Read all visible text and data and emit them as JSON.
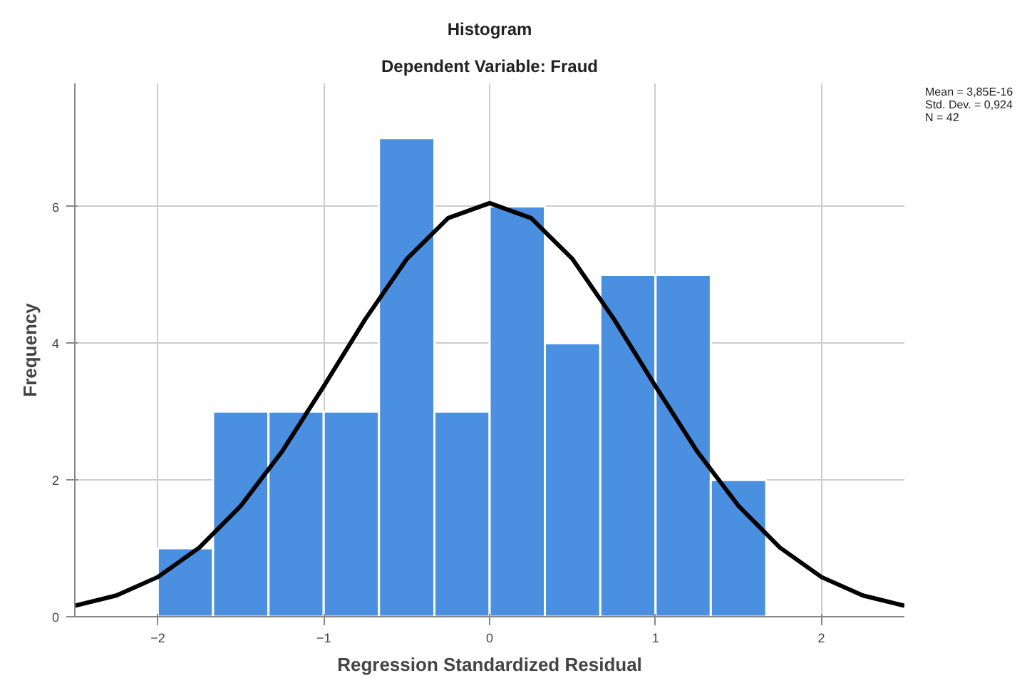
{
  "chart_data": {
    "type": "histogram",
    "title": "Histogram",
    "subtitle": "Dependent Variable: Fraud",
    "xlabel": "Regression Standardized Residual",
    "ylabel": "Frequency",
    "bins": [
      -2,
      -1.667,
      -1.333,
      -1,
      -0.667,
      -0.333,
      0,
      0.333,
      0.667,
      1,
      1.333,
      1.667
    ],
    "values": [
      1,
      3,
      3,
      3,
      7,
      3,
      6,
      4,
      5,
      5,
      2
    ],
    "color": "#4a8fe0",
    "series": [
      {
        "type": "line",
        "color": "#000000",
        "x": [
          -2.5,
          -2.25,
          -2,
          -1.75,
          -1.5,
          -1.25,
          -1,
          -0.75,
          -0.5,
          -0.25,
          0,
          0.25,
          0.5,
          0.75,
          1,
          1.25,
          1.5,
          1.75,
          2,
          2.25,
          2.5
        ],
        "values": [
          0.16,
          0.31,
          0.58,
          1.01,
          1.62,
          2.42,
          3.37,
          4.35,
          5.23,
          5.83,
          6.05,
          5.83,
          5.23,
          4.35,
          3.37,
          2.42,
          1.62,
          1.01,
          0.58,
          0.31,
          0.16
        ]
      }
    ],
    "xlim": [
      -2.5,
      2.5
    ],
    "ylim": [
      0,
      7.8
    ],
    "xticks": [
      -2,
      -1,
      0,
      1,
      2
    ],
    "yticks": [
      0,
      2,
      4,
      6
    ],
    "grid": true,
    "annotations": [
      "Mean = 3,85E-16",
      "Std. Dev. = 0,924",
      "N = 42"
    ]
  }
}
